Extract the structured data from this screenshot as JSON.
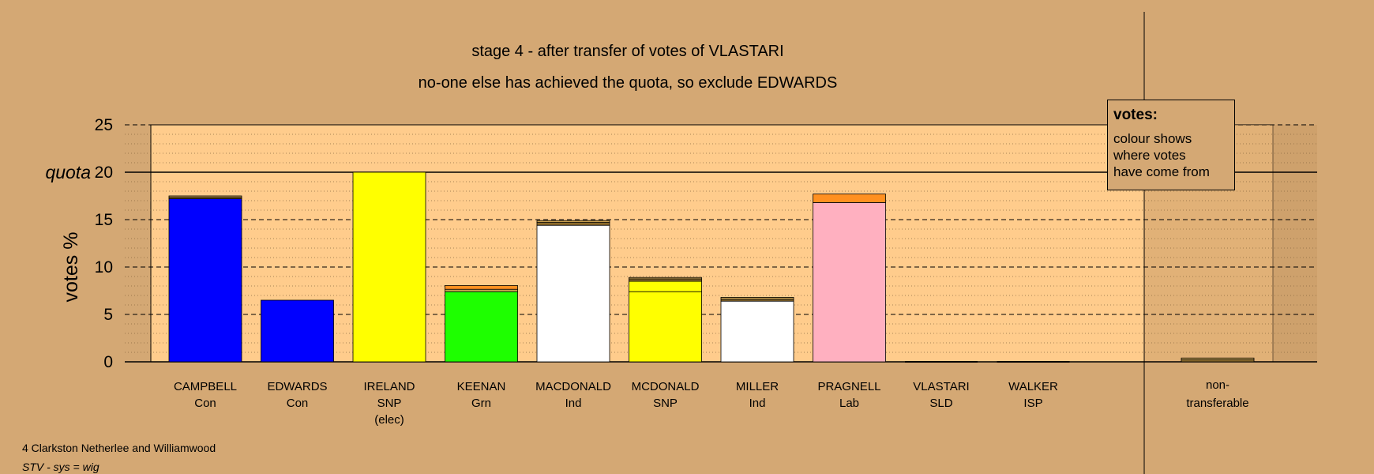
{
  "titles": {
    "line1": "stage 4 - after transfer of votes of VLASTARI",
    "line2": "no-one else has achieved the quota, so exclude EDWARDS"
  },
  "legend": {
    "title": "votes:",
    "line1": "colour shows",
    "line2": "where votes",
    "line3": "have come from"
  },
  "footer": {
    "line1": "4 Clarkston Netherlee and Williamwood",
    "line2": "STV - sys = wig"
  },
  "colors": {
    "background": "#d4a874",
    "plot_area": "#ffcc8c",
    "nontransferable_area": "#c89a66"
  },
  "chart_data": {
    "type": "bar",
    "stacked": true,
    "ylabel": "votes %",
    "ylim": [
      0,
      25
    ],
    "yticks": [
      0,
      5,
      10,
      15,
      20,
      25
    ],
    "quota": {
      "label": "quota",
      "value": 20
    },
    "grid": true,
    "legend_placement": "top-right",
    "candidates": [
      {
        "name": "CAMPBELL",
        "party": "Con",
        "note": "",
        "segments": [
          {
            "value": 17.2,
            "color": "#0000ff"
          },
          {
            "value": 0.15,
            "color": "#8b6a2b"
          },
          {
            "value": 0.15,
            "color": "#c8a050"
          }
        ]
      },
      {
        "name": "EDWARDS",
        "party": "Con",
        "note": "",
        "segments": [
          {
            "value": 6.5,
            "color": "#0000ff"
          }
        ]
      },
      {
        "name": "IRELAND",
        "party": "SNP",
        "note": "(elec)",
        "segments": [
          {
            "value": 20.0,
            "color": "#ffff00"
          }
        ]
      },
      {
        "name": "KEENAN",
        "party": "Grn",
        "note": "",
        "segments": [
          {
            "value": 7.4,
            "color": "#1eff00"
          },
          {
            "value": 0.25,
            "color": "#c8a050"
          },
          {
            "value": 0.4,
            "color": "#ff9020"
          }
        ]
      },
      {
        "name": "MACDONALD",
        "party": "Ind",
        "note": "",
        "segments": [
          {
            "value": 14.4,
            "color": "#ffffff"
          },
          {
            "value": 0.3,
            "color": "#8b6a2b"
          },
          {
            "value": 0.2,
            "color": "#c8a050"
          }
        ]
      },
      {
        "name": "MCDONALD",
        "party": "SNP",
        "note": "",
        "segments": [
          {
            "value": 7.4,
            "color": "#ffff00"
          },
          {
            "value": 1.1,
            "color": "#ffff00"
          },
          {
            "value": 0.25,
            "color": "#8b6a2b"
          },
          {
            "value": 0.15,
            "color": "#c8a050"
          }
        ]
      },
      {
        "name": "MILLER",
        "party": "Ind",
        "note": "",
        "segments": [
          {
            "value": 6.4,
            "color": "#ffffff"
          },
          {
            "value": 0.2,
            "color": "#8b6a2b"
          },
          {
            "value": 0.2,
            "color": "#c8a050"
          }
        ]
      },
      {
        "name": "PRAGNELL",
        "party": "Lab",
        "note": "",
        "segments": [
          {
            "value": 16.8,
            "color": "#ffb0c0"
          },
          {
            "value": 0.9,
            "color": "#ff9020"
          }
        ]
      },
      {
        "name": "VLASTARI",
        "party": "SLD",
        "note": "",
        "segments": []
      },
      {
        "name": "WALKER",
        "party": "ISP",
        "note": "",
        "segments": []
      }
    ],
    "nontransferable": {
      "line1": "non-",
      "line2": "transferable",
      "segments": [
        {
          "value": 0.2,
          "color": "#8b6a2b"
        },
        {
          "value": 0.2,
          "color": "#c8a050"
        }
      ]
    }
  }
}
